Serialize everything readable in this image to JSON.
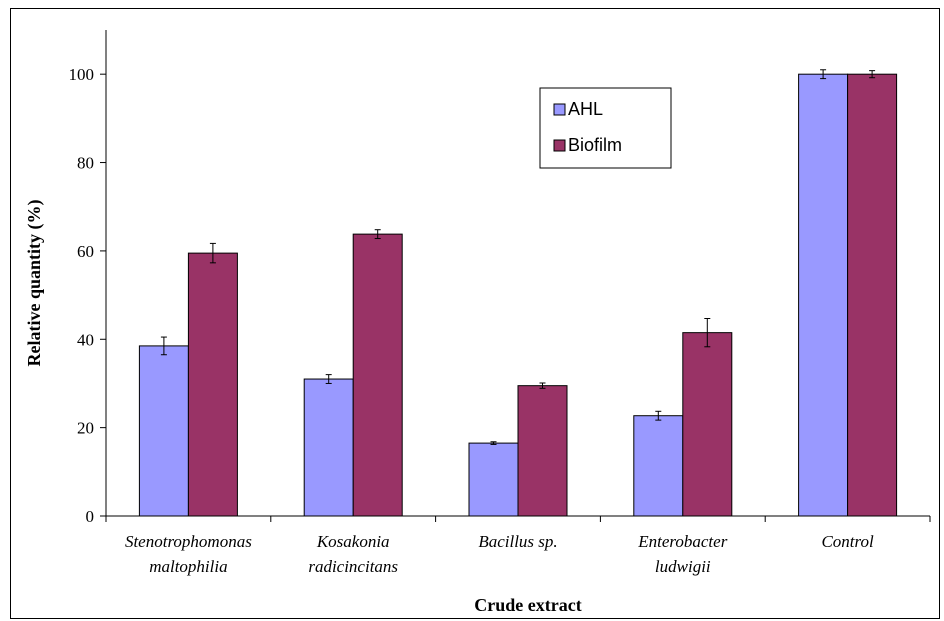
{
  "chart_data": {
    "type": "bar",
    "title": "",
    "xlabel": "Crude extract",
    "ylabel": "Relative quantity (%)",
    "ylim": [
      0,
      110
    ],
    "yticks": [
      "0",
      "20",
      "40",
      "60",
      "80",
      "100"
    ],
    "categories": [
      [
        "Stenotrophomonas",
        "maltophilia"
      ],
      [
        "Kosakonia",
        "radicincitans"
      ],
      [
        "Bacillus sp."
      ],
      [
        "Enterobacter",
        "ludwigii"
      ],
      [
        "Control"
      ]
    ],
    "series": [
      {
        "name": "AHL",
        "color": "#9999ff",
        "values": [
          38.5,
          31,
          16.5,
          22.7,
          100
        ],
        "errors": [
          2,
          1,
          0.3,
          1,
          1
        ]
      },
      {
        "name": "Biofilm",
        "color": "#993366",
        "values": [
          59.5,
          63.8,
          29.5,
          41.5,
          100
        ],
        "errors": [
          2.2,
          1,
          0.6,
          3.2,
          0.8
        ]
      }
    ],
    "grid": false,
    "legend_position": "top-center"
  }
}
